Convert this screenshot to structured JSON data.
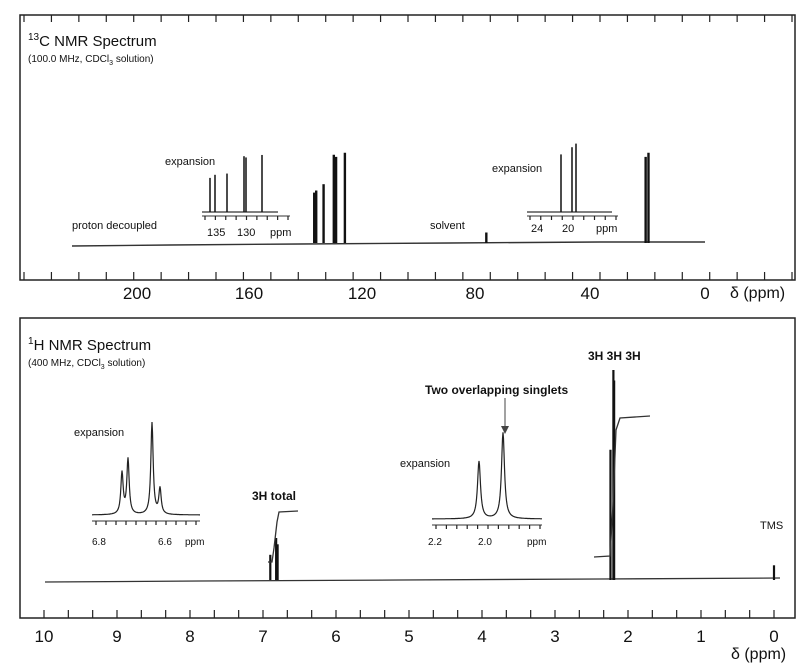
{
  "c13": {
    "title_sup": "13",
    "title_main": "C NMR Spectrum",
    "subtitle_pre": "(100.0 MHz, CDCl",
    "subtitle_sub": "3",
    "subtitle_post": " solution)",
    "annotations": {
      "proton_decoupled": "proton decoupled",
      "solvent": "solvent",
      "expansion": "expansion"
    },
    "axis_unit": "δ (ppm)",
    "xticks": [
      "200",
      "160",
      "120",
      "80",
      "40",
      "0"
    ],
    "expansion1_ticks": [
      "135",
      "130",
      "ppm"
    ],
    "expansion2_ticks": [
      "24",
      "20",
      "ppm"
    ]
  },
  "h1": {
    "title_sup": "1",
    "title_main": "H NMR Spectrum",
    "subtitle_pre": "(400 MHz, CDCl",
    "subtitle_sub": "3",
    "subtitle_post": " solution)",
    "annotations": {
      "expansion": "expansion",
      "three_h_total": "3H total",
      "two_overlapping": "Two overlapping singlets",
      "three_h_groups": "3H 3H 3H",
      "tms": "TMS"
    },
    "axis_unit": "δ (ppm)",
    "xticks": [
      "10",
      "9",
      "8",
      "7",
      "6",
      "5",
      "4",
      "3",
      "2",
      "1",
      "0"
    ],
    "expansion1_ticks": [
      "6.8",
      "6.6",
      "ppm"
    ],
    "expansion2_ticks": [
      "2.2",
      "2.0",
      "ppm"
    ]
  },
  "chart_data": [
    {
      "type": "line",
      "title": "13C NMR Spectrum",
      "subtitle": "(100.0 MHz, CDCl3 solution)",
      "xlabel": "δ (ppm)",
      "xlim": [
        225,
        0
      ],
      "x_reversed": true,
      "peaks_ppm": [
        137.6,
        136.9,
        134.3,
        130.7,
        129.9,
        126.8,
        77.0,
        20.9,
        19.9
      ],
      "peak_heights": [
        0.48,
        0.5,
        0.56,
        0.84,
        0.82,
        0.86,
        0.1,
        0.82,
        0.86
      ],
      "expansion_1": {
        "xlabels": [
          "135",
          "130",
          "ppm"
        ],
        "peak_heights": [
          0.55,
          0.6,
          0.62,
          0.9,
          0.88,
          0.92
        ]
      },
      "expansion_2": {
        "xlabels": [
          "24",
          "20",
          "ppm"
        ],
        "peak_heights": [
          0.8,
          0.9,
          0.95
        ]
      }
    },
    {
      "type": "line",
      "title": "1H NMR Spectrum",
      "subtitle": "(400 MHz, CDCl3 solution)",
      "xlabel": "δ (ppm)",
      "xlim": [
        10.4,
        -0.3
      ],
      "x_reversed": true,
      "peaks_ppm": [
        6.9,
        6.82,
        6.8,
        2.24,
        2.2,
        2.19,
        0.0
      ],
      "peak_heights": [
        0.12,
        0.2,
        0.17,
        0.62,
        1.0,
        0.95,
        0.07
      ],
      "integration_steps_ppm": [
        [
          6.86,
          0.22
        ],
        [
          2.2,
          0.6
        ]
      ],
      "expansion_1": {
        "xlabels": [
          "6.8",
          "6.6",
          "ppm"
        ],
        "peak_heights": [
          0.45,
          0.6,
          1.0,
          0.28
        ]
      },
      "expansion_2": {
        "xlabels": [
          "2.2",
          "2.0",
          "ppm"
        ],
        "peak_heights": [
          0.6,
          0.9
        ]
      }
    }
  ]
}
